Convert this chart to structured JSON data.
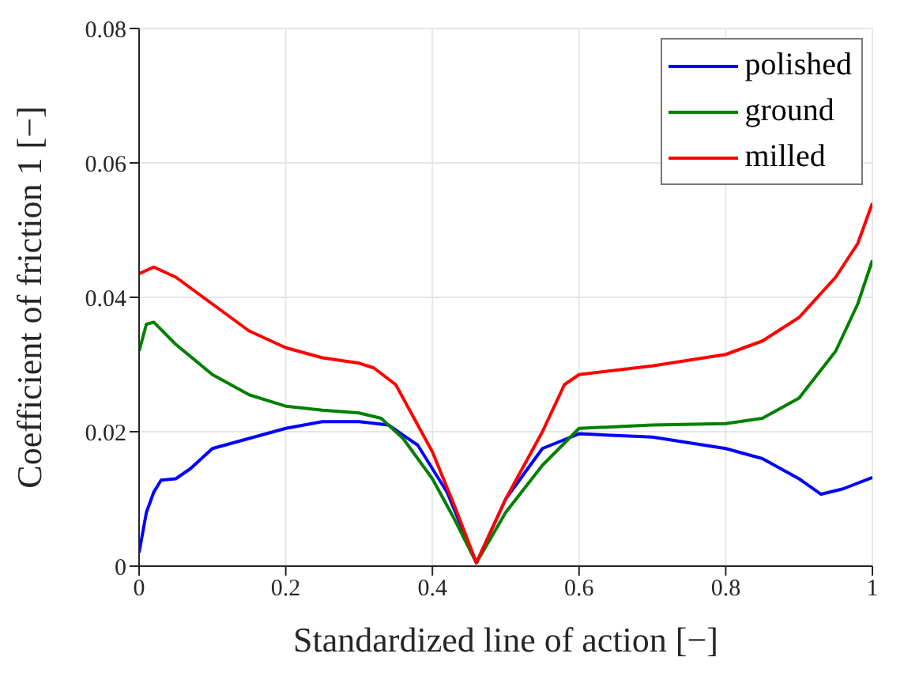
{
  "chart_data": {
    "type": "line",
    "xlabel": "Standardized line of action [−]",
    "ylabel": "Coefficient of friction 1 [−]",
    "xlim": [
      0,
      1
    ],
    "xticks": [
      0,
      0.2,
      0.4,
      0.6,
      0.8,
      1
    ],
    "ylim": [
      0,
      0.08
    ],
    "yticks": [
      0,
      0.02,
      0.04,
      0.06,
      0.08
    ],
    "grid": true,
    "legend": "top right",
    "marker": "none",
    "line_style": "solid",
    "series": [
      {
        "name": "polished",
        "color": "#0000ff",
        "x": [
          0,
          0.01,
          0.02,
          0.03,
          0.05,
          0.07,
          0.1,
          0.15,
          0.2,
          0.25,
          0.3,
          0.34,
          0.38,
          0.42,
          0.46,
          0.5,
          0.55,
          0.6,
          0.7,
          0.8,
          0.85,
          0.9,
          0.93,
          0.96,
          1
        ],
        "values": [
          0.002,
          0.008,
          0.011,
          0.0128,
          0.013,
          0.0145,
          0.0175,
          0.019,
          0.0205,
          0.0215,
          0.0215,
          0.021,
          0.018,
          0.011,
          0.0005,
          0.01,
          0.0175,
          0.0197,
          0.0192,
          0.0175,
          0.016,
          0.013,
          0.0107,
          0.0115,
          0.0132
        ]
      },
      {
        "name": "ground",
        "color": "#008000",
        "x": [
          0,
          0.01,
          0.02,
          0.05,
          0.1,
          0.15,
          0.2,
          0.25,
          0.3,
          0.33,
          0.36,
          0.4,
          0.43,
          0.46,
          0.5,
          0.55,
          0.6,
          0.7,
          0.8,
          0.85,
          0.9,
          0.95,
          0.98,
          1
        ],
        "values": [
          0.032,
          0.036,
          0.0363,
          0.033,
          0.0285,
          0.0255,
          0.0238,
          0.0232,
          0.0228,
          0.022,
          0.019,
          0.013,
          0.007,
          0.0005,
          0.008,
          0.015,
          0.0205,
          0.021,
          0.0212,
          0.022,
          0.025,
          0.032,
          0.039,
          0.0455
        ]
      },
      {
        "name": "milled",
        "color": "#ff0000",
        "x": [
          0,
          0.02,
          0.05,
          0.1,
          0.15,
          0.2,
          0.25,
          0.3,
          0.32,
          0.35,
          0.4,
          0.43,
          0.46,
          0.5,
          0.55,
          0.58,
          0.6,
          0.7,
          0.8,
          0.85,
          0.9,
          0.95,
          0.98,
          1
        ],
        "values": [
          0.0435,
          0.0445,
          0.043,
          0.039,
          0.035,
          0.0325,
          0.031,
          0.0302,
          0.0295,
          0.027,
          0.017,
          0.009,
          0.0005,
          0.01,
          0.02,
          0.027,
          0.0285,
          0.0298,
          0.0315,
          0.0335,
          0.037,
          0.043,
          0.048,
          0.054
        ]
      }
    ]
  }
}
